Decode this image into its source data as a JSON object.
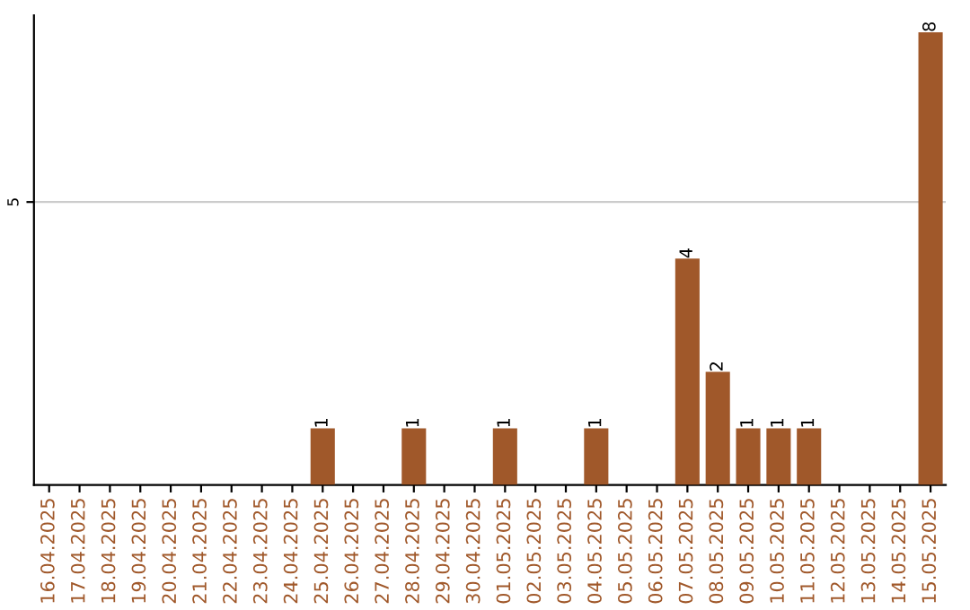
{
  "chart_data": {
    "type": "bar",
    "categories": [
      "16.04.2025",
      "17.04.2025",
      "18.04.2025",
      "19.04.2025",
      "20.04.2025",
      "21.04.2025",
      "22.04.2025",
      "23.04.2025",
      "24.04.2025",
      "25.04.2025",
      "26.04.2025",
      "27.04.2025",
      "28.04.2025",
      "29.04.2025",
      "30.04.2025",
      "01.05.2025",
      "02.05.2025",
      "03.05.2025",
      "04.05.2025",
      "05.05.2025",
      "06.05.2025",
      "07.05.2025",
      "08.05.2025",
      "09.05.2025",
      "10.05.2025",
      "11.05.2025",
      "12.05.2025",
      "13.05.2025",
      "14.05.2025",
      "15.05.2025"
    ],
    "values": [
      0,
      0,
      0,
      0,
      0,
      0,
      0,
      0,
      0,
      1,
      0,
      0,
      1,
      0,
      0,
      1,
      0,
      0,
      1,
      0,
      0,
      4,
      2,
      1,
      1,
      1,
      0,
      0,
      0,
      8
    ],
    "value_labels": [
      null,
      null,
      null,
      null,
      null,
      null,
      null,
      null,
      null,
      "1",
      null,
      null,
      "1",
      null,
      null,
      "1",
      null,
      null,
      "1",
      null,
      null,
      "4",
      "2",
      "1",
      "1",
      "1",
      null,
      null,
      null,
      "8"
    ],
    "color": "#a0582a",
    "ylim": [
      0,
      8.3
    ],
    "yticks": [
      5
    ],
    "grid": "y"
  }
}
